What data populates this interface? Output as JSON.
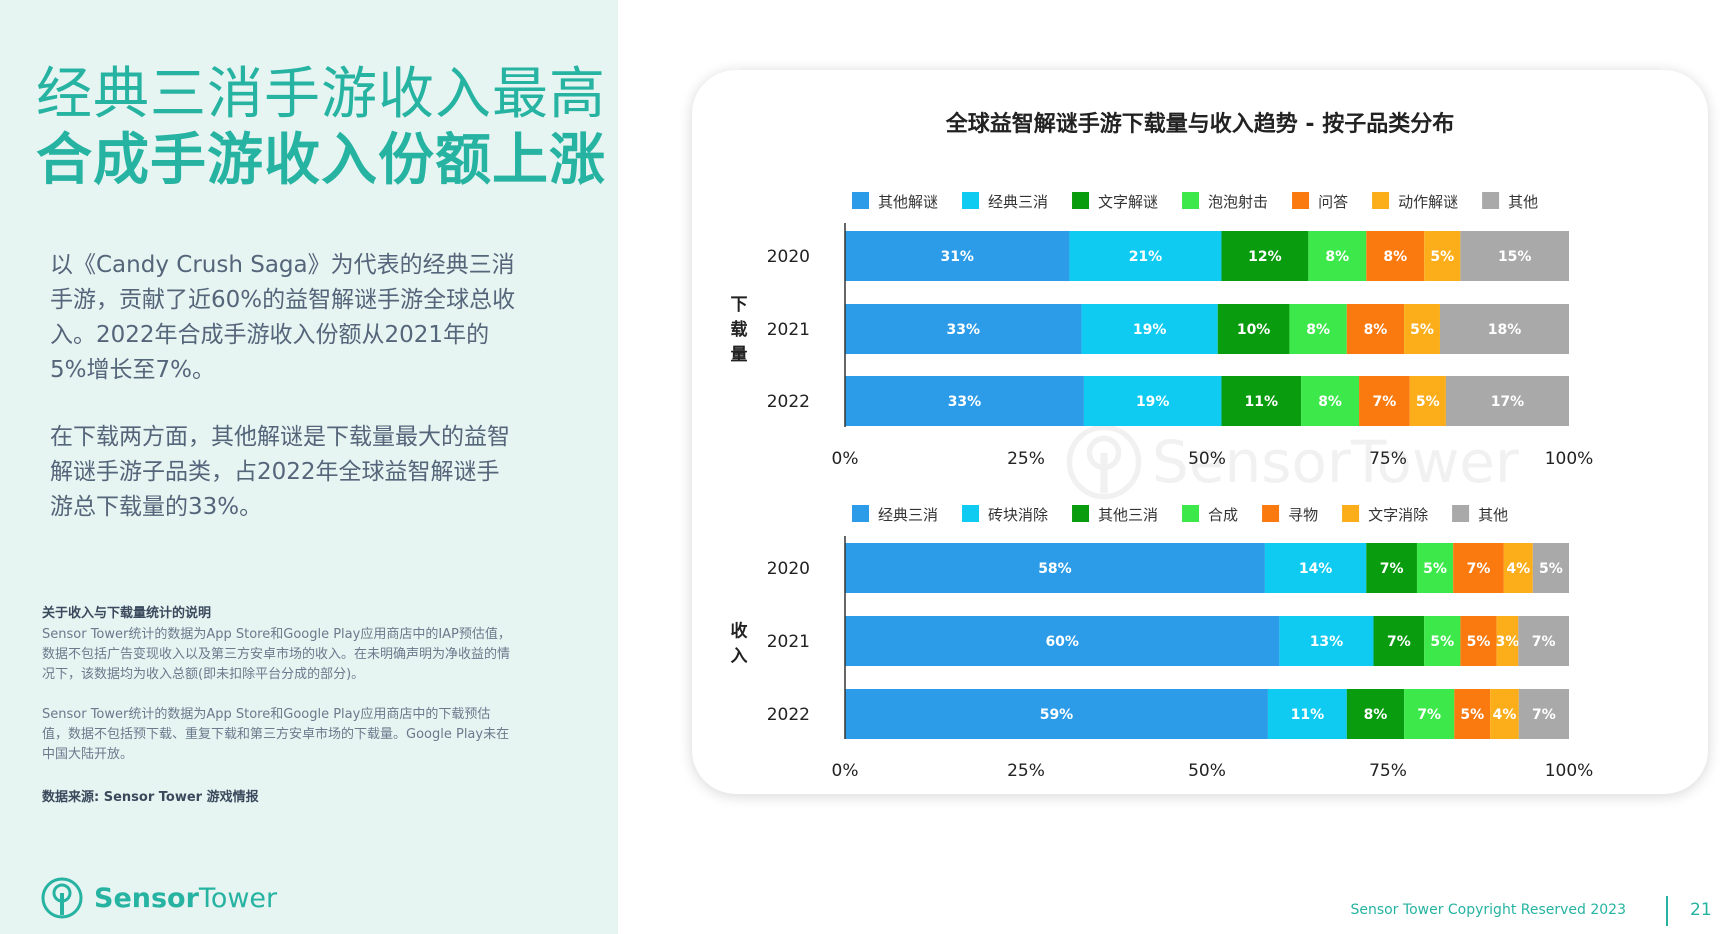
{
  "headline": {
    "line1": "经典三消手游收入最高",
    "line2": "合成手游收入份额上涨"
  },
  "body": {
    "paragraph1": "以《Candy Crush Saga》为代表的经典三消手游，贡献了近60%的益智解谜手游全球总收入。2022年合成手游收入份额从2021年的5%增长至7%。",
    "paragraph2": "在下载两方面，其他解谜是下载量最大的益智解谜手游子品类，占2022年全球益智解谜手游总下载量的33%。"
  },
  "notes": {
    "title": "关于收入与下载量统计的说明",
    "para1": "Sensor Tower统计的数据为App Store和Google Play应用商店中的IAP预估值，数据不包括广告变现收入以及第三方安卓市场的收入。在未明确声明为净收益的情况下，该数据均为收入总额(即未扣除平台分成的部分)。",
    "para2": "Sensor Tower统计的数据为App Store和Google Play应用商店中的下载预估值，数据不包括预下载、重复下载和第三方安卓市场的下载量。Google Play未在中国大陆开放。",
    "source": "数据来源: Sensor Tower 游戏情报"
  },
  "logo": {
    "word1": "Sensor",
    "word2": "Tower",
    "icon": "sensor-tower-logo-icon"
  },
  "footer": {
    "copyright": "Sensor Tower Copyright Reserved 2023",
    "page": "21"
  },
  "chart_data": {
    "title": "全球益智解谜手游下载量与收入趋势 - 按子品类分布",
    "type": "bar",
    "orientation": "horizontal",
    "stacked": true,
    "x_ticks": [
      "0%",
      "25%",
      "50%",
      "75%",
      "100%"
    ],
    "xlim": [
      0,
      100
    ],
    "panels": [
      {
        "label": "下载量",
        "categories": [
          "2020",
          "2021",
          "2022"
        ],
        "legend_position": "top",
        "series": [
          {
            "name": "其他解谜",
            "color": "#2d9ce8",
            "values": [
              31,
              33,
              33
            ]
          },
          {
            "name": "经典三消",
            "color": "#0fcbf2",
            "values": [
              21,
              19,
              19
            ]
          },
          {
            "name": "文字解谜",
            "color": "#0a9c0f",
            "values": [
              12,
              10,
              11
            ]
          },
          {
            "name": "泡泡射击",
            "color": "#3de84a",
            "values": [
              8,
              8,
              8
            ]
          },
          {
            "name": "问答",
            "color": "#fb7a10",
            "values": [
              8,
              8,
              7
            ]
          },
          {
            "name": "动作解谜",
            "color": "#fbae1a",
            "values": [
              5,
              5,
              5
            ]
          },
          {
            "name": "其他",
            "color": "#a9a9a9",
            "values": [
              15,
              18,
              17
            ]
          }
        ]
      },
      {
        "label": "收入",
        "categories": [
          "2020",
          "2021",
          "2022"
        ],
        "legend_position": "top",
        "series": [
          {
            "name": "经典三消",
            "color": "#2d9ce8",
            "values": [
              58,
              60,
              59
            ]
          },
          {
            "name": "砖块消除",
            "color": "#0fcbf2",
            "values": [
              14,
              13,
              11
            ]
          },
          {
            "name": "其他三消",
            "color": "#0a9c0f",
            "values": [
              7,
              7,
              8
            ]
          },
          {
            "name": "合成",
            "color": "#3de84a",
            "values": [
              5,
              5,
              7
            ]
          },
          {
            "name": "寻物",
            "color": "#fb7a10",
            "values": [
              7,
              5,
              5
            ]
          },
          {
            "name": "文字消除",
            "color": "#fbae1a",
            "values": [
              4,
              3,
              4
            ]
          },
          {
            "name": "其他",
            "color": "#a9a9a9",
            "values": [
              5,
              7,
              7
            ]
          }
        ]
      }
    ]
  }
}
